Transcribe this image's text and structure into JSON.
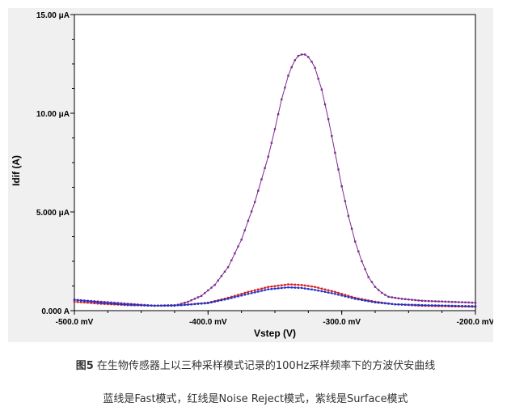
{
  "chart_data": {
    "type": "line",
    "ylabel": "Idif (A)",
    "xlabel": "Vstep (V)",
    "xlim": [
      -500,
      -200
    ],
    "ylim": [
      0,
      15
    ],
    "x_ticks": [
      {
        "value": -500,
        "label": "-500.0 mV"
      },
      {
        "value": -400,
        "label": "-400.0 mV"
      },
      {
        "value": -300,
        "label": "-300.0 mV"
      },
      {
        "value": -200,
        "label": "-200.0 mV"
      }
    ],
    "y_ticks": [
      {
        "value": 0,
        "label": "0.000 A"
      },
      {
        "value": 5,
        "label": "5.000 μA"
      },
      {
        "value": 10,
        "label": "10.00 μA"
      },
      {
        "value": 15,
        "label": "15.00 μA"
      }
    ],
    "series": [
      {
        "color": "#7b2a8e",
        "points": [
          [
            -500,
            0.55
          ],
          [
            -480,
            0.45
          ],
          [
            -460,
            0.35
          ],
          [
            -440,
            0.25
          ],
          [
            -425,
            0.25
          ],
          [
            -415,
            0.45
          ],
          [
            -405,
            0.75
          ],
          [
            -395,
            1.3
          ],
          [
            -385,
            2.2
          ],
          [
            -375,
            3.6
          ],
          [
            -365,
            5.5
          ],
          [
            -355,
            7.8
          ],
          [
            -350,
            9.2
          ],
          [
            -345,
            10.7
          ],
          [
            -340,
            11.9
          ],
          [
            -336,
            12.6
          ],
          [
            -332,
            12.95
          ],
          [
            -328,
            13.0
          ],
          [
            -324,
            12.8
          ],
          [
            -320,
            12.3
          ],
          [
            -315,
            11.2
          ],
          [
            -310,
            9.7
          ],
          [
            -305,
            8.0
          ],
          [
            -300,
            6.3
          ],
          [
            -295,
            4.8
          ],
          [
            -290,
            3.5
          ],
          [
            -285,
            2.5
          ],
          [
            -280,
            1.7
          ],
          [
            -275,
            1.2
          ],
          [
            -270,
            0.9
          ],
          [
            -265,
            0.7
          ],
          [
            -255,
            0.6
          ],
          [
            -240,
            0.5
          ],
          [
            -220,
            0.45
          ],
          [
            -200,
            0.4
          ]
        ]
      },
      {
        "color": "#d42020",
        "points": [
          [
            -500,
            0.45
          ],
          [
            -480,
            0.35
          ],
          [
            -460,
            0.28
          ],
          [
            -440,
            0.25
          ],
          [
            -420,
            0.28
          ],
          [
            -400,
            0.4
          ],
          [
            -385,
            0.65
          ],
          [
            -370,
            0.95
          ],
          [
            -355,
            1.2
          ],
          [
            -340,
            1.33
          ],
          [
            -330,
            1.3
          ],
          [
            -320,
            1.2
          ],
          [
            -305,
            0.95
          ],
          [
            -290,
            0.65
          ],
          [
            -275,
            0.45
          ],
          [
            -260,
            0.32
          ],
          [
            -240,
            0.25
          ],
          [
            -220,
            0.22
          ],
          [
            -200,
            0.2
          ]
        ]
      },
      {
        "color": "#2030c8",
        "points": [
          [
            -500,
            0.55
          ],
          [
            -480,
            0.4
          ],
          [
            -460,
            0.3
          ],
          [
            -440,
            0.25
          ],
          [
            -420,
            0.28
          ],
          [
            -400,
            0.38
          ],
          [
            -385,
            0.6
          ],
          [
            -370,
            0.85
          ],
          [
            -355,
            1.08
          ],
          [
            -340,
            1.18
          ],
          [
            -330,
            1.15
          ],
          [
            -320,
            1.05
          ],
          [
            -305,
            0.85
          ],
          [
            -290,
            0.6
          ],
          [
            -275,
            0.42
          ],
          [
            -260,
            0.32
          ],
          [
            -240,
            0.28
          ],
          [
            -220,
            0.25
          ],
          [
            -200,
            0.22
          ]
        ]
      }
    ]
  },
  "caption": {
    "figure_label": "图5",
    "line1_text": " 在生物传感器上以三种采样模式记录的100Hz采样频率下的方波伏安曲线",
    "line2_text": "蓝线是Fast模式，红线是Noise Reject模式，紫线是Surface模式"
  }
}
